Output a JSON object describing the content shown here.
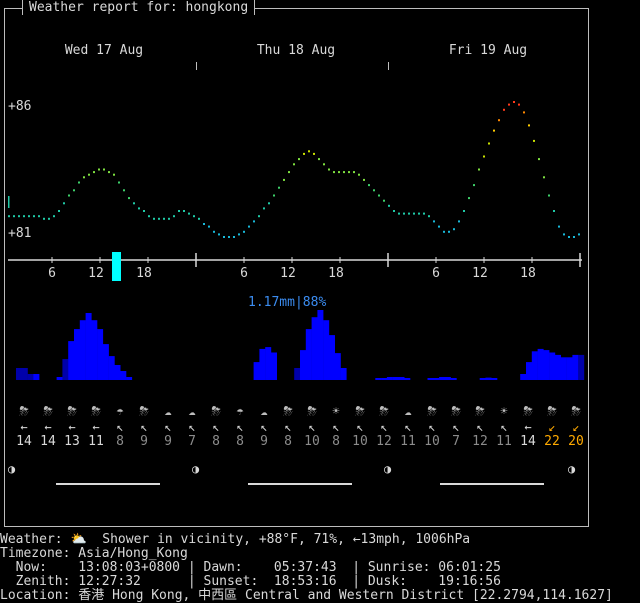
{
  "title": "Weather report for: hongkong",
  "days": [
    "Wed 17 Aug",
    "Thu 18 Aug",
    "Fri 19 Aug"
  ],
  "temp_axis": {
    "max_label": "+86",
    "min_label": "+81"
  },
  "hour_labels": [
    "6",
    "12",
    "18",
    "6",
    "12",
    "18",
    "6",
    "12",
    "18"
  ],
  "precip_label": "1.17mm|88%",
  "colors": {
    "bar": "#0000ff",
    "bar_dark": "#0000aa",
    "cursor": "#00ffff",
    "precip_text": "#3b8cf0",
    "wind_high": "#ffaa00",
    "dim": "#8c8c8c"
  },
  "temperature": [
    81.6,
    81.6,
    81.6,
    81.6,
    81.6,
    81.6,
    81.6,
    81.5,
    81.5,
    81.6,
    81.8,
    82.1,
    82.4,
    82.6,
    82.9,
    83.1,
    83.2,
    83.3,
    83.4,
    83.4,
    83.3,
    83.2,
    82.9,
    82.6,
    82.3,
    82.1,
    81.9,
    81.8,
    81.6,
    81.5,
    81.5,
    81.5,
    81.5,
    81.6,
    81.8,
    81.8,
    81.7,
    81.6,
    81.5,
    81.3,
    81.2,
    81.0,
    80.9,
    80.8,
    80.8,
    80.8,
    80.9,
    81.0,
    81.2,
    81.4,
    81.6,
    81.9,
    82.1,
    82.4,
    82.7,
    83.0,
    83.3,
    83.6,
    83.8,
    84.0,
    84.1,
    84.0,
    83.8,
    83.6,
    83.4,
    83.3,
    83.3,
    83.3,
    83.3,
    83.3,
    83.2,
    83.0,
    82.8,
    82.6,
    82.4,
    82.2,
    82.0,
    81.8,
    81.7,
    81.7,
    81.7,
    81.7,
    81.7,
    81.7,
    81.6,
    81.4,
    81.2,
    81.0,
    81.0,
    81.1,
    81.4,
    81.8,
    82.3,
    82.8,
    83.4,
    83.9,
    84.4,
    84.9,
    85.3,
    85.7,
    85.9,
    86.0,
    85.9,
    85.6,
    85.1,
    84.5,
    83.8,
    83.1,
    82.4,
    81.8,
    81.2,
    80.9,
    80.8,
    80.8,
    80.9
  ],
  "precipitation": [
    0.2,
    0.2,
    0.1,
    0.1,
    0,
    0,
    0,
    0.05,
    0.35,
    0.65,
    0.85,
    1.0,
    1.12,
    1.0,
    0.85,
    0.6,
    0.4,
    0.25,
    0.15,
    0.05,
    0,
    0,
    0,
    0,
    0,
    0,
    0,
    0,
    0,
    0,
    0,
    0,
    0,
    0,
    0,
    0,
    0,
    0,
    0,
    0,
    0,
    0.3,
    0.52,
    0.55,
    0.46,
    0,
    0,
    0,
    0.2,
    0.5,
    0.85,
    1.05,
    1.17,
    1.0,
    0.75,
    0.45,
    0.2,
    0,
    0,
    0,
    0,
    0,
    0.02,
    0.02,
    0.05,
    0.05,
    0.05,
    0.02,
    0,
    0,
    0,
    0.02,
    0.03,
    0.05,
    0.05,
    0.03,
    0,
    0,
    0,
    0,
    0.02,
    0.04,
    0.03,
    0,
    0,
    0,
    0,
    0.1,
    0.3,
    0.48,
    0.52,
    0.5,
    0.46,
    0.42,
    0.38,
    0.38,
    0.42,
    0.42
  ],
  "forecast_columns": [
    {
      "icon": "⛈",
      "arrow": "←",
      "speed": "14",
      "style": "normal"
    },
    {
      "icon": "⛈",
      "arrow": "←",
      "speed": "14",
      "style": "normal"
    },
    {
      "icon": "⛈",
      "arrow": "←",
      "speed": "13",
      "style": "normal"
    },
    {
      "icon": "⛈",
      "arrow": "←",
      "speed": "11",
      "style": "normal"
    },
    {
      "icon": "☂",
      "arrow": "↖",
      "speed": "8",
      "style": "dim"
    },
    {
      "icon": "⛈",
      "arrow": "↖",
      "speed": "9",
      "style": "dim"
    },
    {
      "icon": "☁",
      "arrow": "↖",
      "speed": "9",
      "style": "dim"
    },
    {
      "icon": "☁",
      "arrow": "↖",
      "speed": "7",
      "style": "dim"
    },
    {
      "icon": "⛈",
      "arrow": "↖",
      "speed": "8",
      "style": "dim"
    },
    {
      "icon": "☂",
      "arrow": "↖",
      "speed": "8",
      "style": "dim"
    },
    {
      "icon": "☁",
      "arrow": "↖",
      "speed": "9",
      "style": "dim"
    },
    {
      "icon": "⛈",
      "arrow": "↖",
      "speed": "8",
      "style": "dim"
    },
    {
      "icon": "⛈",
      "arrow": "↖",
      "speed": "10",
      "style": "dim"
    },
    {
      "icon": "☀",
      "arrow": "↖",
      "speed": "8",
      "style": "dim"
    },
    {
      "icon": "⛈",
      "arrow": "↖",
      "speed": "10",
      "style": "dim"
    },
    {
      "icon": "⛈",
      "arrow": "↖",
      "speed": "12",
      "style": "dim"
    },
    {
      "icon": "☁",
      "arrow": "↖",
      "speed": "11",
      "style": "dim"
    },
    {
      "icon": "⛈",
      "arrow": "↖",
      "speed": "10",
      "style": "dim"
    },
    {
      "icon": "⛈",
      "arrow": "↖",
      "speed": "7",
      "style": "dim"
    },
    {
      "icon": "⛈",
      "arrow": "↖",
      "speed": "12",
      "style": "dim"
    },
    {
      "icon": "☀",
      "arrow": "↖",
      "speed": "11",
      "style": "dim"
    },
    {
      "icon": "⛈",
      "arrow": "←",
      "speed": "14",
      "style": "normal"
    },
    {
      "icon": "⛈",
      "arrow": "↙",
      "speed": "22",
      "style": "high"
    },
    {
      "icon": "⛈",
      "arrow": "↙",
      "speed": "20",
      "style": "high"
    }
  ],
  "moon_phases": [
    "◑",
    "◑",
    "◑",
    "◑"
  ],
  "info": {
    "line1": "Weather: ⛅  Shower in vicinity, +88°F, 71%, ←13mph, 1006hPa",
    "line2": "Timezone: Asia/Hong_Kong",
    "line3": "  Now:    13:08:03+0800 | Dawn:    05:37:43  | Sunrise: 06:01:25",
    "line4": "  Zenith: 12:27:32      | Sunset:  18:53:16  | Dusk:    19:16:56",
    "line5": "Location: 香港 Hong Kong, 中西區 Central and Western District [22.2794,114.1627]"
  }
}
